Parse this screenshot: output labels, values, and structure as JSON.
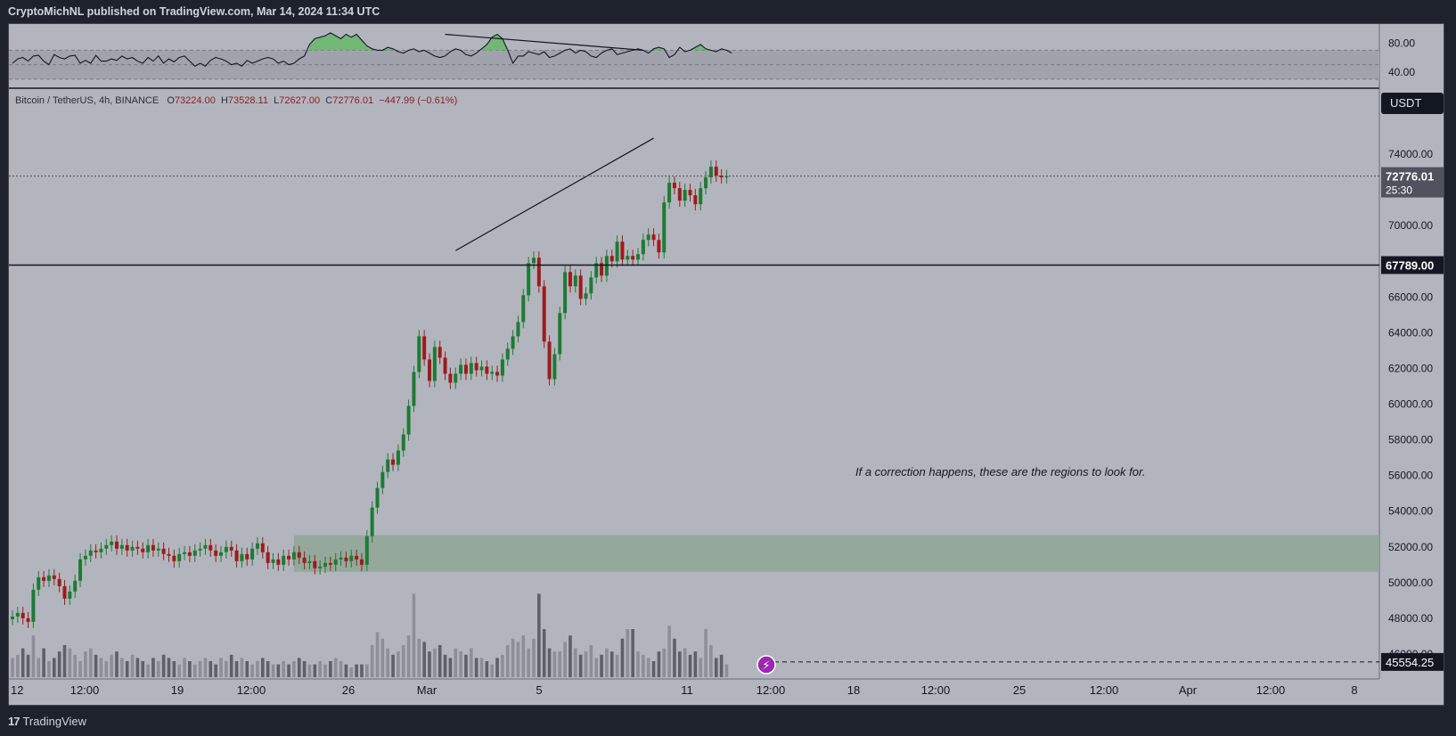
{
  "header": {
    "publish_line": "CryptoMichNL published on TradingView.com, Mar 14, 2024 11:34 UTC"
  },
  "footer": {
    "brand": "TradingView",
    "logo_glyph": "17"
  },
  "instrument": {
    "title": "Bitcoin / TetherUS, 4h, BINANCE",
    "open_label": "O",
    "open": "73224.00",
    "high_label": "H",
    "high": "73528.11",
    "low_label": "L",
    "low": "72627.00",
    "close_label": "C",
    "close": "72776.01",
    "change": "−447.99 (−0.61%)",
    "currency": "USDT"
  },
  "annotation": "If a correction happens, these are the regions to look for.",
  "colors": {
    "up": "#1e7b32",
    "down": "#9e1b1b",
    "zone": "#8fa697",
    "rsi_fill": "#5cb85c",
    "bg": "#b2b5be",
    "dark": "#1e222d"
  },
  "chart_data": [
    {
      "type": "line",
      "panel": "oscillator",
      "y_ticks": [
        "80.00",
        "40.00"
      ],
      "ylim": [
        20,
        100
      ],
      "bands": [
        70,
        50,
        30
      ],
      "series": [
        {
          "values": [
            52,
            58,
            60,
            55,
            62,
            63,
            55,
            50,
            64,
            60,
            58,
            62,
            63,
            52,
            56,
            52,
            63,
            55,
            55,
            58,
            56,
            62,
            58,
            60,
            55,
            52,
            60,
            55,
            62,
            52,
            58,
            54,
            60,
            62,
            55,
            48,
            52,
            48,
            56,
            60,
            58,
            55,
            50,
            52,
            48,
            56,
            52,
            55,
            58,
            60,
            58,
            52,
            55,
            50,
            52,
            58,
            62,
            78,
            86,
            88,
            90,
            94,
            90,
            86,
            92,
            88,
            92,
            84,
            76,
            72,
            70,
            70,
            74,
            72,
            68,
            66,
            70,
            72,
            68,
            70,
            66,
            62,
            60,
            62,
            68,
            72,
            70,
            64,
            62,
            66,
            72,
            78,
            88,
            92,
            86,
            70,
            52,
            62,
            62,
            68,
            66,
            64,
            68,
            60,
            62,
            66,
            70,
            72,
            66,
            70,
            68,
            62,
            60,
            66,
            70,
            72,
            64,
            66,
            68,
            70,
            72,
            70,
            66,
            72,
            74,
            72,
            60,
            64,
            74,
            68,
            70,
            74,
            78,
            72,
            70,
            68,
            72,
            70,
            66
          ]
        }
      ],
      "trendline": {
        "x": [
          83,
          121
        ],
        "y": [
          92,
          70
        ]
      }
    },
    {
      "type": "candlestick",
      "panel": "price",
      "x_ticks": [
        "12",
        "12:00",
        "19",
        "12:00",
        "26",
        "Mar",
        "5",
        "11",
        "12:00",
        "18",
        "12:00",
        "25",
        "12:00",
        "Apr",
        "12:00",
        "8"
      ],
      "y_ticks": [
        "74000.00",
        "70000.00",
        "66000.00",
        "64000.00",
        "62000.00",
        "60000.00",
        "58000.00",
        "56000.00",
        "54000.00",
        "52000.00",
        "50000.00",
        "48000.00",
        "46000.00"
      ],
      "ylim": [
        44700,
        76800
      ],
      "last_price": {
        "value": "72776.01",
        "countdown": "25:30"
      },
      "horizontal_level": {
        "value": "67789.00"
      },
      "volume_marker": {
        "value": "45554.25"
      },
      "demand_zone": {
        "from": 50600,
        "to": 52650
      },
      "rising_trendline": {
        "x": [
          85,
          123
        ],
        "y": [
          68600,
          74900
        ]
      },
      "close": [
        48100,
        48300,
        48000,
        47800,
        49600,
        50300,
        50100,
        50400,
        50200,
        49800,
        49100,
        49500,
        50100,
        51300,
        51500,
        51800,
        51700,
        51900,
        52100,
        52300,
        51900,
        52100,
        51800,
        52000,
        51900,
        51700,
        52100,
        51800,
        51900,
        51600,
        51500,
        51200,
        51600,
        51700,
        51500,
        51800,
        51900,
        52100,
        51800,
        51500,
        51700,
        52000,
        51800,
        51200,
        51600,
        51300,
        51900,
        52200,
        51700,
        51100,
        51300,
        51000,
        51500,
        51300,
        51700,
        51400,
        51100,
        51200,
        50800,
        50900,
        51100,
        51000,
        51300,
        51400,
        51200,
        51500,
        51300,
        51000,
        52600,
        54200,
        55300,
        56200,
        56900,
        56600,
        57400,
        58300,
        59900,
        61800,
        63800,
        62500,
        61300,
        63200,
        62600,
        61700,
        61200,
        61700,
        62200,
        61700,
        62300,
        61900,
        62100,
        61700,
        61800,
        61600,
        62500,
        63100,
        63800,
        64600,
        66100,
        67900,
        68200,
        66600,
        63500,
        61400,
        62800,
        65100,
        67400,
        66600,
        67200,
        65900,
        66200,
        67100,
        67900,
        67200,
        68300,
        68000,
        69100,
        68100,
        68300,
        68100,
        68400,
        69200,
        69500,
        69200,
        68500,
        71300,
        72400,
        72100,
        71400,
        72000,
        71700,
        71200,
        72100,
        72700,
        73300,
        72800,
        72700,
        72776
      ],
      "volume": [
        6,
        7,
        9,
        7,
        13,
        6,
        9,
        5,
        6,
        8,
        10,
        9,
        7,
        5,
        8,
        9,
        7,
        6,
        5,
        7,
        8,
        6,
        5,
        7,
        6,
        5,
        4,
        6,
        5,
        7,
        6,
        5,
        4,
        6,
        5,
        4,
        5,
        6,
        5,
        4,
        6,
        5,
        7,
        5,
        6,
        5,
        4,
        5,
        6,
        5,
        4,
        4,
        5,
        4,
        5,
        6,
        5,
        4,
        4,
        5,
        4,
        5,
        6,
        5,
        4,
        3,
        4,
        4,
        4,
        10,
        14,
        12,
        9,
        7,
        8,
        10,
        13,
        26,
        12,
        11,
        8,
        9,
        10,
        7,
        6,
        9,
        8,
        7,
        9,
        6,
        6,
        5,
        4,
        6,
        7,
        10,
        12,
        11,
        13,
        9,
        12,
        26,
        15,
        9,
        8,
        8,
        11,
        13,
        9,
        7,
        8,
        10,
        6,
        7,
        9,
        8,
        7,
        12,
        15,
        15,
        8,
        7,
        6,
        5,
        8,
        9,
        16,
        12,
        8,
        9,
        7,
        8,
        6,
        15,
        10,
        6,
        7,
        4
      ]
    }
  ]
}
